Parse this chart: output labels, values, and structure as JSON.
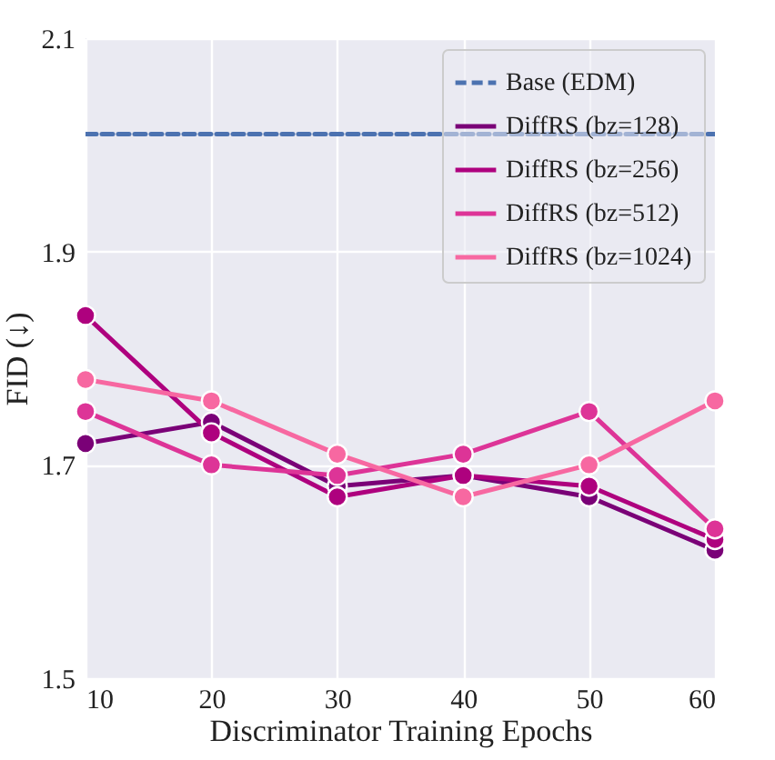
{
  "chart_data": {
    "type": "line",
    "xlabel": "Discriminator Training Epochs",
    "ylabel": "FID (↓)",
    "x": [
      10,
      20,
      30,
      40,
      50,
      60
    ],
    "series": [
      {
        "name": "Base (EDM)",
        "color": "#4c72b0",
        "values": [
          2.01,
          2.01,
          2.01,
          2.01,
          2.01,
          2.01
        ],
        "marker": "none",
        "line_style": "dashed"
      },
      {
        "name": "DiffRS (bz=128)",
        "color": "#7a0177",
        "values": [
          1.72,
          1.74,
          1.68,
          1.69,
          1.67,
          1.62
        ]
      },
      {
        "name": "DiffRS (bz=256)",
        "color": "#ae017e",
        "values": [
          1.84,
          1.73,
          1.67,
          1.69,
          1.68,
          1.63
        ]
      },
      {
        "name": "DiffRS (bz=512)",
        "color": "#dd3497",
        "values": [
          1.75,
          1.7,
          1.69,
          1.71,
          1.75,
          1.64
        ]
      },
      {
        "name": "DiffRS (bz=1024)",
        "color": "#f768a1",
        "values": [
          1.78,
          1.76,
          1.71,
          1.67,
          1.7,
          1.76
        ]
      }
    ],
    "xlim": [
      10,
      60
    ],
    "xticks": [
      10,
      20,
      30,
      40,
      50,
      60
    ],
    "ylim": [
      1.5,
      2.1
    ],
    "yticks": [
      1.5,
      1.7,
      1.9,
      2.1
    ],
    "grid": true,
    "legend": "top right",
    "marker": "circle",
    "line_style": "solid"
  }
}
